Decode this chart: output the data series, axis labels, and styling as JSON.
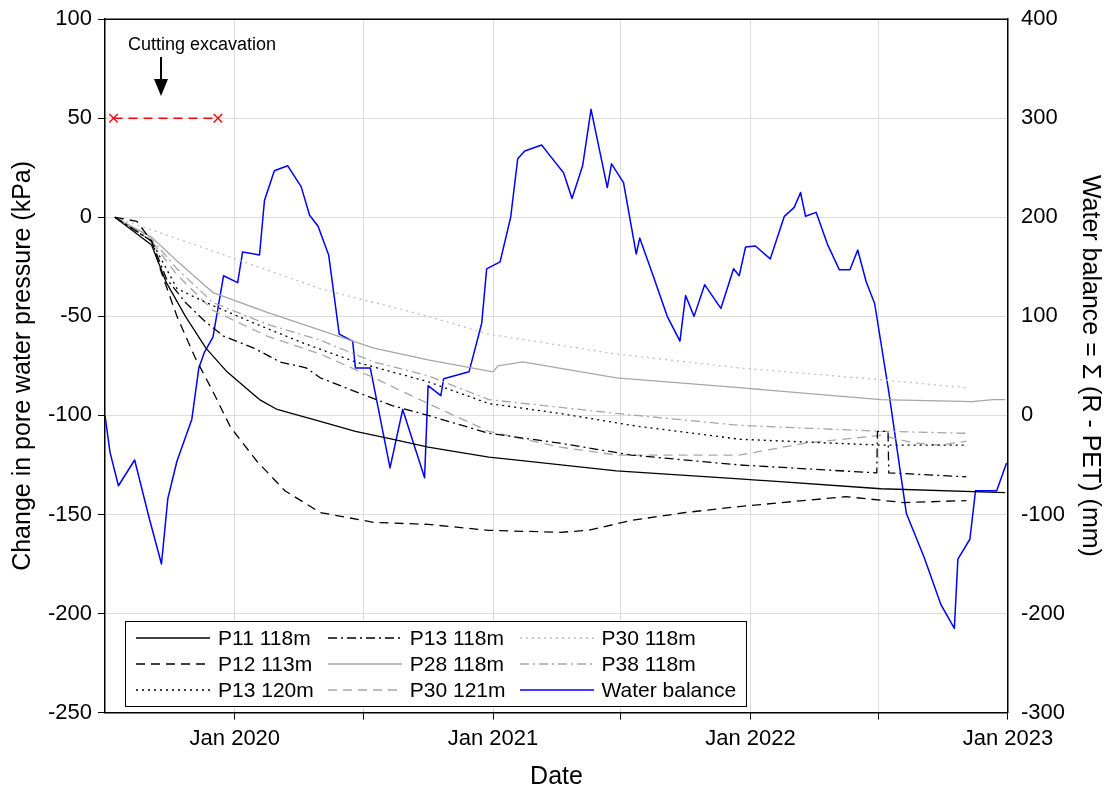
{
  "chart_data": {
    "type": "line",
    "xlabel": "Date",
    "ylabel": "Change in pore water pressure (kPa)",
    "y2label": "Water balance = Σ (R - PET) (mm)",
    "xlim": [
      "2019-07-01",
      "2023-01-01"
    ],
    "xticks": [
      {
        "value": "2020-01-01",
        "label": "Jan 2020"
      },
      {
        "value": "2020-07-01",
        "label": null
      },
      {
        "value": "2021-01-01",
        "label": "Jan 2021"
      },
      {
        "value": "2021-07-01",
        "label": null
      },
      {
        "value": "2022-01-01",
        "label": "Jan 2022"
      },
      {
        "value": "2022-07-01",
        "label": null
      },
      {
        "value": "2023-01-01",
        "label": "Jan 2023"
      }
    ],
    "ylim": [
      -250,
      100
    ],
    "yticks": [
      -250,
      -200,
      -150,
      -100,
      -50,
      0,
      50,
      100
    ],
    "y2lim": [
      -300,
      400
    ],
    "y2ticks": [
      -300,
      -200,
      -100,
      0,
      100,
      200,
      300,
      400
    ],
    "grid": true,
    "legend": "bottom left",
    "annotations": [
      "Cutting excavation"
    ],
    "series": [
      {
        "name": "P11 118m",
        "color": "#000000",
        "line_style": "solid",
        "x": [
          "2019-07-15",
          "2019-09-05",
          "2019-09-26",
          "2019-10-23",
          "2019-11-21",
          "2019-12-21",
          "2020-02-05",
          "2020-03-01",
          "2020-05-01",
          "2020-06-20",
          "2020-08-11",
          "2020-10-01",
          "2020-12-26",
          "2021-06-25",
          "2021-12-16",
          "2022-07-05",
          "2022-12-28"
        ],
        "values": [
          0,
          -14,
          -33,
          -50,
          -66,
          -78,
          -92,
          -97,
          -103,
          -108,
          -112,
          -116,
          -121,
          -128,
          -132,
          -137,
          -139
        ]
      },
      {
        "name": "P12 113m",
        "color": "#000000",
        "line_style": "dashed",
        "x": [
          "2019-07-15",
          "2019-08-15",
          "2019-09-05",
          "2019-09-20",
          "2019-10-11",
          "2019-11-06",
          "2019-12-01",
          "2019-12-26",
          "2020-02-01",
          "2020-03-12",
          "2020-05-01",
          "2020-07-16",
          "2020-10-01",
          "2020-12-26",
          "2021-04-06",
          "2021-05-16",
          "2021-07-16",
          "2021-10-01",
          "2021-12-16",
          "2022-05-16",
          "2022-08-07",
          "2022-11-03"
        ],
        "values": [
          0,
          -2,
          -12,
          -29,
          -50,
          -71,
          -88,
          -106,
          -123,
          -138,
          -149,
          -154,
          -155,
          -158,
          -159,
          -158,
          -153,
          -149,
          -146,
          -141,
          -144,
          -143
        ]
      },
      {
        "name": "P13 120m",
        "color": "#000000",
        "line_style": "dotted",
        "x": [
          "2019-07-15",
          "2019-09-05",
          "2019-10-11",
          "2019-11-21",
          "2020-02-01",
          "2020-04-11",
          "2020-06-20",
          "2020-10-01",
          "2020-12-26",
          "2021-04-06",
          "2021-07-16",
          "2021-12-16",
          "2022-07-05",
          "2022-11-03"
        ],
        "values": [
          0,
          -12,
          -36,
          -43,
          -54,
          -64,
          -73,
          -83,
          -94,
          -99,
          -105,
          -112,
          -115,
          -115
        ]
      },
      {
        "name": "P13 118m",
        "color": "#000000",
        "line_style": "dashdot",
        "x": [
          "2019-07-15",
          "2019-09-05",
          "2019-09-26",
          "2019-10-23",
          "2019-11-18",
          "2019-12-16",
          "2020-01-28",
          "2020-03-05",
          "2020-04-11",
          "2020-05-01",
          "2020-06-20",
          "2020-08-11",
          "2020-10-01",
          "2020-12-26",
          "2021-04-06",
          "2021-07-16",
          "2021-12-16",
          "2022-06-29",
          "2022-06-30",
          "2022-07-15",
          "2022-07-16",
          "2022-11-03"
        ],
        "values": [
          0,
          -12,
          -31,
          -43,
          -52,
          -60,
          -66,
          -73,
          -76,
          -81,
          -88,
          -95,
          -100,
          -109,
          -114,
          -120,
          -125,
          -129,
          -108,
          -108,
          -129,
          -131
        ]
      },
      {
        "name": "P28 118m",
        "color": "#a6a6a6",
        "line_style": "solid",
        "x": [
          "2019-07-15",
          "2019-09-05",
          "2019-10-11",
          "2019-12-01",
          "2020-02-16",
          "2020-05-01",
          "2020-07-16",
          "2020-10-01",
          "2021-01-01",
          "2021-01-08",
          "2021-02-12",
          "2021-06-25",
          "2021-12-16",
          "2022-07-05",
          "2022-11-11",
          "2022-12-11",
          "2022-12-28"
        ],
        "values": [
          0,
          -10,
          -22,
          -38,
          -48,
          -57,
          -66,
          -72,
          -78,
          -75,
          -73,
          -81,
          -86,
          -92,
          -93,
          -92,
          -92
        ]
      },
      {
        "name": "P30 121m",
        "color": "#a6a6a6",
        "line_style": "dashed",
        "x": [
          "2019-07-15",
          "2019-09-05",
          "2019-10-11",
          "2019-12-01",
          "2020-02-16",
          "2020-05-01",
          "2020-07-16",
          "2020-10-01",
          "2020-12-26",
          "2021-04-06",
          "2021-06-25",
          "2021-12-16",
          "2022-03-20",
          "2022-07-05",
          "2022-08-22",
          "2022-09-28",
          "2022-11-03"
        ],
        "values": [
          0,
          -12,
          -29,
          -47,
          -60,
          -69,
          -81,
          -94,
          -108,
          -116,
          -120,
          -120,
          -114,
          -110,
          -114,
          -115,
          -113
        ]
      },
      {
        "name": "P30 118m",
        "color": "#bfbfbf",
        "line_style": "dotted",
        "x": [
          "2019-07-15",
          "2019-12-01",
          "2020-05-01",
          "2020-10-01",
          "2020-12-26",
          "2021-06-25",
          "2021-12-16",
          "2022-07-05",
          "2022-11-03"
        ],
        "values": [
          0,
          -17,
          -36,
          -50,
          -59,
          -69,
          -76,
          -82,
          -86
        ]
      },
      {
        "name": "P38 118m",
        "color": "#a6a6a6",
        "line_style": "dashdot",
        "x": [
          "2019-07-15",
          "2019-09-05",
          "2019-10-11",
          "2019-12-01",
          "2020-02-16",
          "2020-05-01",
          "2020-07-16",
          "2020-10-01",
          "2020-12-26",
          "2021-06-25",
          "2021-12-16",
          "2022-07-05",
          "2022-11-03"
        ],
        "values": [
          0,
          -11,
          -26,
          -43,
          -54,
          -62,
          -73,
          -80,
          -92,
          -99,
          -105,
          -108,
          -109
        ]
      },
      {
        "name": "Water balance",
        "color": "#0000ff",
        "line_style": "solid",
        "axis": "y2",
        "x": [
          "2019-07-01",
          "2019-07-08",
          "2019-07-20",
          "2019-08-12",
          "2019-09-01",
          "2019-09-19",
          "2019-09-28",
          "2019-10-11",
          "2019-11-01",
          "2019-11-11",
          "2019-11-19",
          "2019-12-01",
          "2019-12-16",
          "2020-01-05",
          "2020-01-12",
          "2020-02-05",
          "2020-02-12",
          "2020-02-26",
          "2020-03-16",
          "2020-04-04",
          "2020-04-16",
          "2020-04-28",
          "2020-05-13",
          "2020-05-28",
          "2020-06-16",
          "2020-06-20",
          "2020-07-11",
          "2020-08-08",
          "2020-08-26",
          "2020-09-26",
          "2020-10-01",
          "2020-10-19",
          "2020-10-23",
          "2020-11-28",
          "2020-12-16",
          "2020-12-23",
          "2021-01-11",
          "2021-01-26",
          "2021-02-05",
          "2021-02-15",
          "2021-03-11",
          "2021-03-23",
          "2021-04-11",
          "2021-04-23",
          "2021-05-08",
          "2021-05-20",
          "2021-06-12",
          "2021-06-18",
          "2021-07-05",
          "2021-07-23",
          "2021-07-28",
          "2021-08-16",
          "2021-09-05",
          "2021-09-23",
          "2021-10-01",
          "2021-10-13",
          "2021-10-28",
          "2021-11-20",
          "2021-12-08",
          "2021-12-16",
          "2021-12-25",
          "2022-01-08",
          "2022-01-29",
          "2022-02-18",
          "2022-03-04",
          "2022-03-13",
          "2022-03-20",
          "2022-04-04",
          "2022-04-20",
          "2022-05-07",
          "2022-05-22",
          "2022-06-02",
          "2022-06-14",
          "2022-06-26",
          "2022-07-16",
          "2022-08-10",
          "2022-09-04",
          "2022-09-28",
          "2022-10-17",
          "2022-10-22",
          "2022-11-08",
          "2022-11-16",
          "2022-12-16",
          "2022-12-30"
        ],
        "values": [
          0,
          -37,
          -71,
          -45,
          -102,
          -150,
          -84,
          -46,
          -4,
          48,
          64,
          79,
          141,
          134,
          165,
          162,
          217,
          247,
          252,
          231,
          202,
          191,
          162,
          82,
          75,
          48,
          48,
          -53,
          6,
          -63,
          30,
          20,
          37,
          44,
          93,
          148,
          155,
          200,
          259,
          267,
          273,
          262,
          245,
          219,
          252,
          309,
          230,
          254,
          235,
          163,
          179,
          141,
          100,
          75,
          121,
          100,
          132,
          108,
          148,
          141,
          170,
          171,
          158,
          201,
          210,
          225,
          201,
          205,
          173,
          147,
          147,
          167,
          135,
          113,
          24,
          -99,
          -143,
          -191,
          -215,
          -145,
          -125,
          -76,
          -76,
          -48
        ]
      },
      {
        "color": "#ff0000",
        "line_style": "dashed",
        "marker": "cross",
        "x": [
          "2019-07-13",
          "2019-12-08"
        ],
        "values": [
          50,
          50
        ]
      }
    ]
  }
}
